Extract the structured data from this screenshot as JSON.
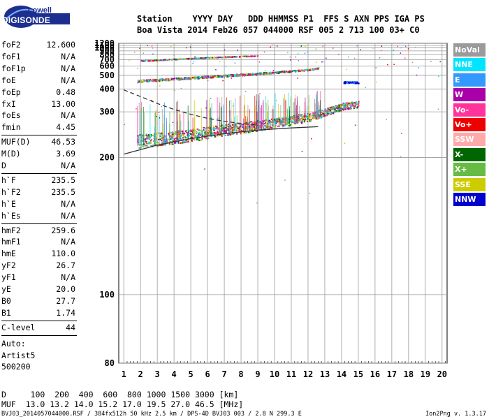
{
  "logo": {
    "top": "Lowell",
    "bottom": "DIGISONDE"
  },
  "header": {
    "line1": "Station    YYYY DAY   DDD HHMMSS P1  FFS S AXN PPS IGA PS",
    "line2": "Boa Vista 2014 Feb26 057 044000 RSF 005 2 713 100 03+ C0"
  },
  "params": {
    "group1": [
      {
        "name": "foF2",
        "value": "12.600"
      },
      {
        "name": "foF1",
        "value": "N/A"
      },
      {
        "name": "foF1p",
        "value": "N/A"
      },
      {
        "name": "foE",
        "value": "N/A"
      },
      {
        "name": "foEp",
        "value": "0.48"
      },
      {
        "name": "fxI",
        "value": "13.00"
      },
      {
        "name": "foEs",
        "value": "N/A"
      },
      {
        "name": "fmin",
        "value": "4.45"
      }
    ],
    "group2": [
      {
        "name": "MUF(D)",
        "value": "46.53"
      },
      {
        "name": "M(D)",
        "value": "3.69"
      },
      {
        "name": "D",
        "value": "N/A"
      }
    ],
    "group3": [
      {
        "name": "h`F",
        "value": "235.5"
      },
      {
        "name": "h`F2",
        "value": "235.5"
      },
      {
        "name": "h`E",
        "value": "N/A"
      },
      {
        "name": "h`Es",
        "value": "N/A"
      }
    ],
    "group4": [
      {
        "name": "hmF2",
        "value": "259.6"
      },
      {
        "name": "hmF1",
        "value": "N/A"
      },
      {
        "name": "hmE",
        "value": "110.0"
      },
      {
        "name": "yF2",
        "value": "26.7"
      },
      {
        "name": "yF1",
        "value": "N/A"
      },
      {
        "name": "yE",
        "value": "20.0"
      },
      {
        "name": "B0",
        "value": "27.7"
      },
      {
        "name": "B1",
        "value": "1.74"
      }
    ],
    "clevel": {
      "name": "C-level",
      "value": "44"
    },
    "autoscale": [
      "Auto:",
      "Artist5",
      "500200"
    ]
  },
  "legend": [
    {
      "label": "NoVal",
      "color": "#9a9a9a"
    },
    {
      "label": "NNE",
      "color": "#00e5ff"
    },
    {
      "label": "E",
      "color": "#3399ff"
    },
    {
      "label": "W",
      "color": "#aa00aa"
    },
    {
      "label": "Vo-",
      "color": "#ff3399"
    },
    {
      "label": "Vo+",
      "color": "#ee0000"
    },
    {
      "label": "SSW",
      "color": "#ffaaaa"
    },
    {
      "label": "X-",
      "color": "#006600"
    },
    {
      "label": "X+",
      "color": "#66bb44"
    },
    {
      "label": "SSE",
      "color": "#cccc00"
    },
    {
      "label": "NNW",
      "color": "#0000cc"
    }
  ],
  "bottom": {
    "line1": "D     100  200  400  600  800 1000 1500 3000 [km]",
    "line2": "MUF  13.0 13.2 14.0 15.2 17.0 19.5 27.0 46.5 [MHz]",
    "footer": "BVJ03_2014057044000.RSF / 384fx512h 50 kHz 2.5 km / DPS-4D BVJ03 003 / 2.8 N 299.3 E",
    "version": "Ion2Png v. 1.3.17"
  },
  "chart_data": {
    "type": "scatter",
    "title": "",
    "xlabel": "",
    "ylabel": "",
    "xlim": [
      0.7,
      20.3
    ],
    "ylim": [
      80,
      1200
    ],
    "x_ticks": [
      1,
      2,
      3,
      4,
      5,
      6,
      7,
      8,
      9,
      10,
      11,
      12,
      13,
      14,
      15,
      16,
      17,
      18,
      19,
      20
    ],
    "y_ticks": [
      80,
      100,
      200,
      300,
      400,
      500,
      600,
      700,
      800,
      900,
      1000,
      1100,
      1200
    ],
    "y_scale": "reciprocal",
    "grid": true,
    "traces": [
      {
        "name": "F2 trace",
        "points": [
          [
            1.8,
            228
          ],
          [
            3,
            232
          ],
          [
            5,
            240
          ],
          [
            7,
            252
          ],
          [
            9,
            262
          ],
          [
            11,
            276
          ],
          [
            12,
            285
          ],
          [
            13,
            300
          ],
          [
            14,
            320
          ],
          [
            15,
            330
          ]
        ]
      },
      {
        "name": "F2 2nd hop",
        "points": [
          [
            1.8,
            455
          ],
          [
            3,
            464
          ],
          [
            5,
            480
          ],
          [
            7,
            500
          ],
          [
            9,
            518
          ],
          [
            11,
            545
          ],
          [
            12,
            560
          ],
          [
            12.6,
            578
          ]
        ]
      },
      {
        "name": "F2 3rd hop",
        "points": [
          [
            2,
            685
          ],
          [
            3,
            700
          ],
          [
            5,
            730
          ],
          [
            7,
            760
          ],
          [
            9,
            785
          ]
        ]
      },
      {
        "name": "Es cluster",
        "points": [
          [
            14.1,
            445
          ],
          [
            14.5,
            448
          ],
          [
            15,
            445
          ]
        ]
      }
    ],
    "model_profile": {
      "solid": [
        [
          1,
          205
        ],
        [
          3,
          220
        ],
        [
          5,
          232
        ],
        [
          7,
          242
        ],
        [
          9,
          250
        ],
        [
          11,
          255
        ],
        [
          12.6,
          258
        ]
      ],
      "dashed": [
        [
          1,
          395
        ],
        [
          2,
          360
        ],
        [
          3,
          330
        ],
        [
          4,
          308
        ],
        [
          5,
          292
        ],
        [
          6,
          280
        ],
        [
          7,
          272
        ],
        [
          8,
          266
        ],
        [
          9,
          262
        ]
      ]
    }
  }
}
